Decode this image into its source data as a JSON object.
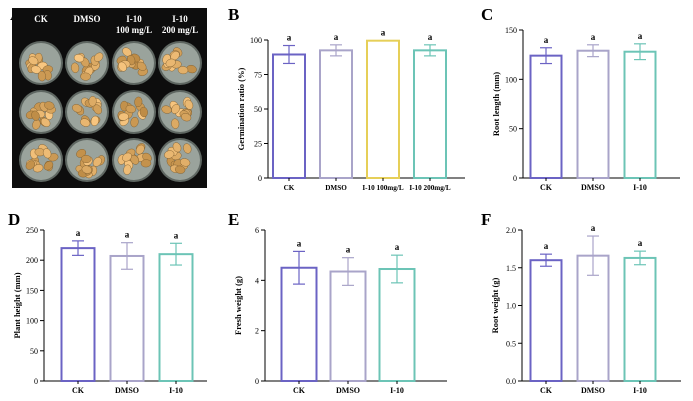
{
  "photo": {
    "panel_label": "A",
    "column_labels": [
      {
        "line1": "CK",
        "line2": ""
      },
      {
        "line1": "DMSO",
        "line2": ""
      },
      {
        "line1": "I-10",
        "line2": "100 mg/L"
      },
      {
        "line1": "I-10",
        "line2": "200 mg/L"
      }
    ],
    "rows": 3
  },
  "colors": {
    "CK": "#6b63c4",
    "DMSO": "#a9a4c9",
    "I-10 100mg/L": "#e6cf58",
    "I-10": "#6cc4b6",
    "I-10 200mg/L": "#6cc4b6",
    "axis": "#000000",
    "photo_bg": "#0d0d0d",
    "dish": "#9aa39c",
    "seed": "#c99650"
  },
  "chart_data": [
    {
      "panel_label": "B",
      "type": "bar",
      "categories": [
        "CK",
        "DMSO",
        "I-10 100mg/L",
        "I-10 200mg/L"
      ],
      "values": [
        89.5,
        92.5,
        99.5,
        92.5
      ],
      "errors": [
        6.5,
        4,
        0,
        4
      ],
      "letters": [
        "a",
        "a",
        "a",
        "a"
      ],
      "ylabel": "Germination ratio (%)",
      "ylim": [
        0,
        100
      ],
      "yticks": [
        0,
        25,
        50,
        75,
        100
      ]
    },
    {
      "panel_label": "C",
      "type": "bar",
      "categories": [
        "CK",
        "DMSO",
        "I-10"
      ],
      "values": [
        124,
        129,
        128
      ],
      "errors": [
        8,
        6,
        8
      ],
      "letters": [
        "a",
        "a",
        "a"
      ],
      "ylabel": "Root length (mm)",
      "ylim": [
        0,
        150
      ],
      "yticks": [
        0,
        50,
        100,
        150
      ]
    },
    {
      "panel_label": "D",
      "type": "bar",
      "categories": [
        "CK",
        "DMSO",
        "I-10"
      ],
      "values": [
        220,
        207,
        210
      ],
      "errors": [
        12,
        22,
        18
      ],
      "letters": [
        "a",
        "a",
        "a"
      ],
      "ylabel": "Plant height (mm)",
      "ylim": [
        0,
        250
      ],
      "yticks": [
        0,
        50,
        100,
        150,
        200,
        250
      ]
    },
    {
      "panel_label": "E",
      "type": "bar",
      "categories": [
        "CK",
        "DMSO",
        "I-10"
      ],
      "values": [
        4.5,
        4.35,
        4.45
      ],
      "errors": [
        0.65,
        0.55,
        0.55
      ],
      "letters": [
        "a",
        "a",
        "a"
      ],
      "ylabel": "Fresh weight (g)",
      "ylim": [
        0,
        6
      ],
      "yticks": [
        0,
        2,
        4,
        6
      ]
    },
    {
      "panel_label": "F",
      "type": "bar",
      "categories": [
        "CK",
        "DMSO",
        "I-10"
      ],
      "values": [
        1.6,
        1.66,
        1.63
      ],
      "errors": [
        0.08,
        0.26,
        0.09
      ],
      "letters": [
        "a",
        "a",
        "a"
      ],
      "ylabel": "Root weight (g)",
      "ylim": [
        0,
        2.0
      ],
      "yticks": [
        0,
        0.5,
        1.0,
        1.5,
        2.0
      ],
      "ytick_labels": [
        "0.0",
        "0.5",
        "1.0",
        "1.5",
        "2.0"
      ]
    }
  ]
}
